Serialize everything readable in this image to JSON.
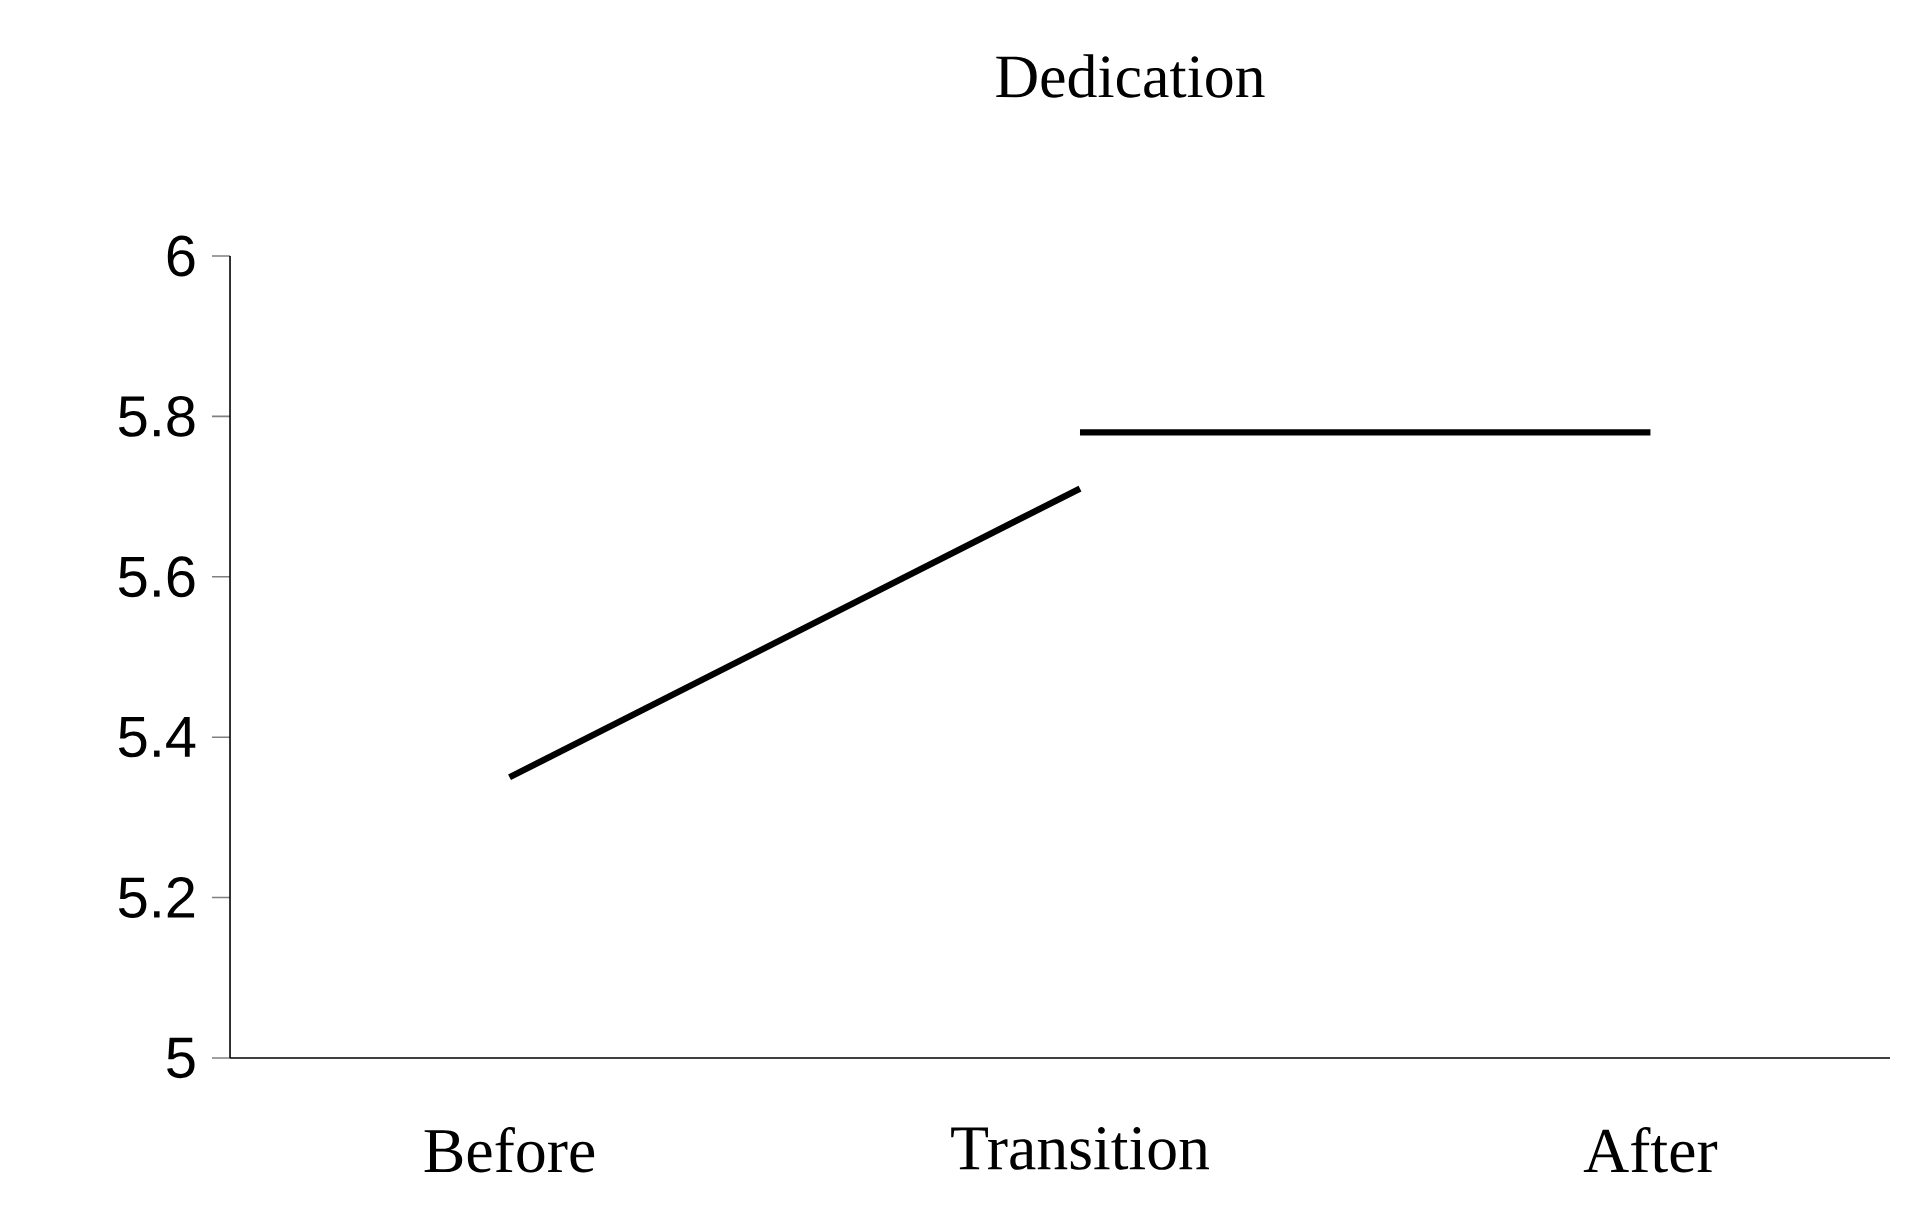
{
  "chart_data": {
    "type": "line",
    "title": "Dedication",
    "categories": [
      "Before",
      "Transition",
      "After"
    ],
    "series": [
      {
        "color": "#000000",
        "values": [
          5.35,
          5.71,
          null
        ]
      },
      {
        "color": "#000000",
        "values": [
          null,
          5.78,
          5.78
        ]
      }
    ],
    "ylim": [
      5,
      6
    ],
    "yticks": [
      5,
      5.2,
      5.4,
      5.6,
      5.8,
      6
    ],
    "marker": "none",
    "line_style": "solid"
  }
}
